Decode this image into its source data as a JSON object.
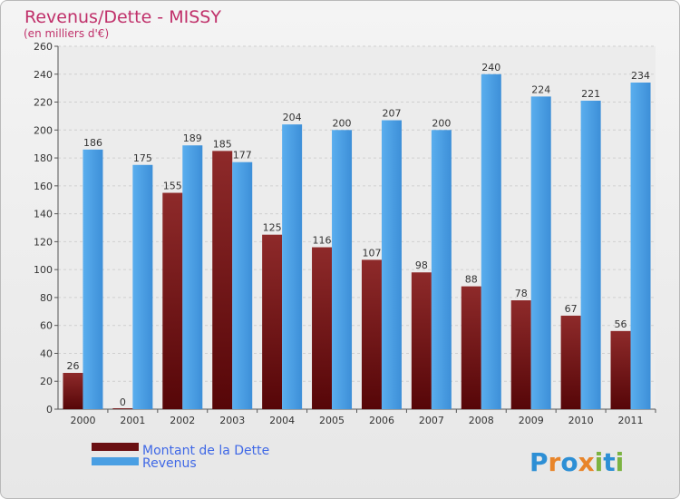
{
  "chart_data": {
    "type": "bar",
    "title": "Revenus/Dette - MISSY",
    "subtitle": "(en milliers d'€)",
    "categories": [
      "2000",
      "2001",
      "2002",
      "2003",
      "2004",
      "2005",
      "2006",
      "2007",
      "2008",
      "2009",
      "2010",
      "2011"
    ],
    "series": [
      {
        "name": "Montant de la Dette",
        "color": "#7a1618",
        "values": [
          26,
          0,
          155,
          185,
          125,
          116,
          107,
          98,
          88,
          78,
          67,
          56
        ]
      },
      {
        "name": "Revenus",
        "color": "#4a9fe3",
        "values": [
          186,
          175,
          189,
          177,
          204,
          200,
          207,
          200,
          240,
          224,
          221,
          234
        ]
      }
    ],
    "ylim": [
      0,
      260
    ],
    "yticks": [
      0,
      20,
      40,
      60,
      80,
      100,
      120,
      140,
      160,
      180,
      200,
      220,
      240,
      260
    ],
    "grid": true,
    "legend_position": "bottom-left"
  },
  "logo": {
    "text": "Proxiti",
    "letters": [
      "P",
      "r",
      "o",
      "x",
      "i",
      "t",
      "i"
    ]
  }
}
